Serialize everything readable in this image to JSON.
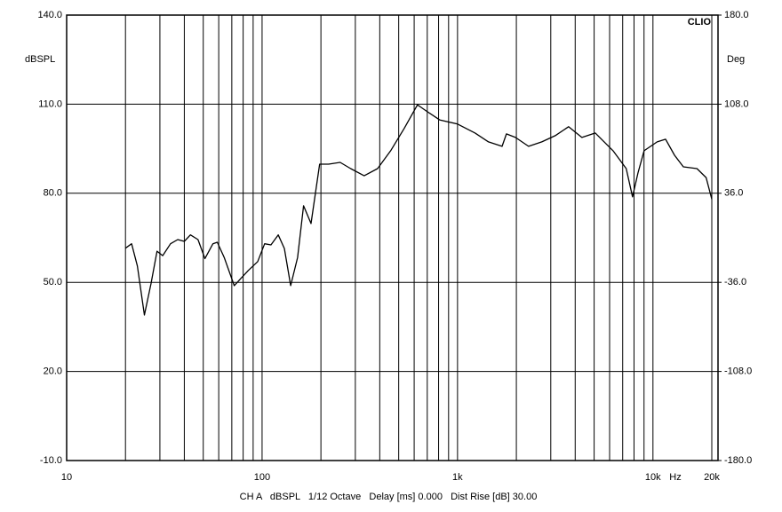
{
  "chart_data": {
    "type": "line",
    "brand": "CLIO",
    "ylabel": "dBSPL",
    "y2label": "Deg",
    "xunit": "Hz",
    "footer": "CH A   dBSPL   1/12 Octave   Delay [ms] 0.000   Dist Rise [dB] 30.00",
    "xscale": "log",
    "grid": true,
    "xlim": [
      10,
      20000
    ],
    "xticks": [
      10,
      100,
      {
        "value": 1000,
        "label": "1k"
      },
      {
        "value": 10000,
        "label": "10k"
      },
      {
        "value": 20000,
        "label": "20k"
      }
    ],
    "xminor": [
      20,
      30,
      40,
      50,
      60,
      70,
      80,
      90,
      200,
      300,
      400,
      500,
      600,
      700,
      800,
      900,
      2000,
      3000,
      4000,
      5000,
      6000,
      7000,
      8000,
      9000
    ],
    "ylim": [
      -10,
      140
    ],
    "yticks": [
      {
        "value": 140,
        "label": "140.0"
      },
      {
        "value": 110,
        "label": "110.0"
      },
      {
        "value": 80,
        "label": "80.0"
      },
      {
        "value": 50,
        "label": "50.0"
      },
      {
        "value": 20,
        "label": "20.0"
      },
      {
        "value": -10,
        "label": "-10.0"
      }
    ],
    "y2lim": [
      -180,
      180
    ],
    "y2ticks": [
      {
        "value": 180,
        "label": "180.0"
      },
      {
        "value": 108,
        "label": "108.0"
      },
      {
        "value": 36,
        "label": "36.0"
      },
      {
        "value": -36,
        "label": "-36.0"
      },
      {
        "value": -108,
        "label": "-108.0"
      },
      {
        "value": -180,
        "label": "-180.0"
      }
    ],
    "x": [
      20,
      21.5,
      23,
      25,
      27,
      29,
      31,
      34,
      37,
      40,
      43,
      47,
      51,
      56,
      59,
      64,
      72,
      77,
      85,
      95,
      103,
      111,
      121,
      130,
      140,
      152,
      163,
      178,
      197,
      219,
      251,
      284,
      333,
      390,
      455,
      533,
      624,
      693,
      810,
      1000,
      1230,
      1440,
      1690,
      1780,
      1980,
      2310,
      2700,
      3160,
      3700,
      4330,
      5070,
      6250,
      7300,
      7860,
      8380,
      9010,
      10500,
      11600,
      12900,
      14300,
      16800,
      18700,
      20000
    ],
    "series": [
      {
        "color": "#000000",
        "values": [
          61.5,
          63,
          55.5,
          39,
          49.5,
          60.5,
          59,
          63,
          64.4,
          63.8,
          66,
          64.4,
          58,
          63,
          63.5,
          58.4,
          48.9,
          51,
          54,
          57,
          63,
          62.6,
          66,
          61.4,
          48.9,
          58.4,
          75.8,
          69.8,
          89.8,
          89.8,
          90.4,
          88.3,
          85.9,
          88.3,
          94.3,
          101.8,
          109.8,
          107.7,
          104.7,
          103.3,
          100.3,
          97.3,
          95.8,
          100,
          98.8,
          95.8,
          97.3,
          99.4,
          102.4,
          98.8,
          100.3,
          94.3,
          88.3,
          78.8,
          86.8,
          94.3,
          97.3,
          98.2,
          92.8,
          88.9,
          88.3,
          85.3,
          78
        ]
      }
    ]
  }
}
